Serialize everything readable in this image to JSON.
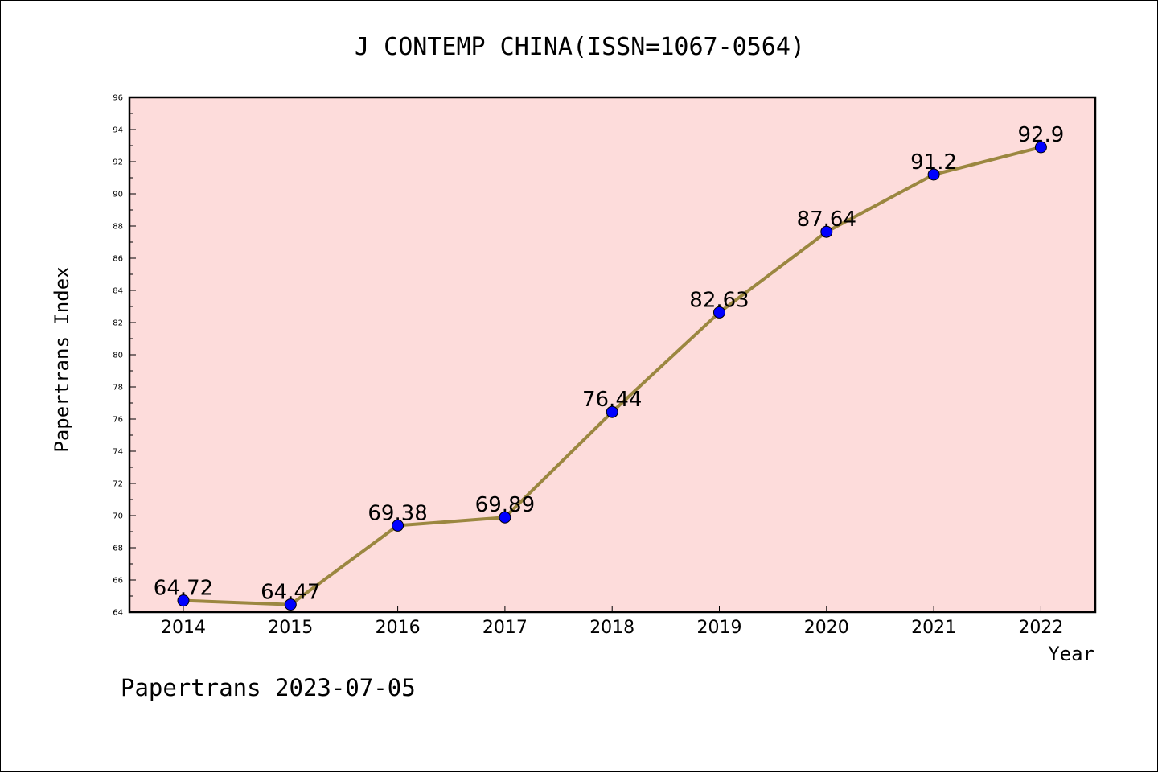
{
  "chart_data": {
    "type": "line",
    "title": "J CONTEMP CHINA(ISSN=1067-0564)",
    "xlabel": "Year",
    "ylabel": "Papertrans Index",
    "categories": [
      "2014",
      "2015",
      "2016",
      "2017",
      "2018",
      "2019",
      "2020",
      "2021",
      "2022"
    ],
    "series": [
      {
        "values": [
          64.72,
          64.47,
          69.38,
          69.89,
          76.44,
          82.63,
          87.64,
          91.2,
          92.9
        ],
        "data_labels": [
          "64.72",
          "64.47",
          "69.38",
          "69.89",
          "76.44",
          "82.63",
          "87.64",
          "91.2",
          "92.9"
        ]
      }
    ],
    "ylim": [
      64,
      96
    ],
    "yticks": [
      "64",
      "66",
      "68",
      "70",
      "72",
      "74",
      "76",
      "78",
      "80",
      "82",
      "84",
      "86",
      "88",
      "90",
      "92",
      "94",
      "96"
    ],
    "grid": false,
    "colors": {
      "plot_background": "#fddcdb",
      "line": "#9b8740",
      "marker": "#0000ff"
    }
  },
  "footer": "Papertrans 2023-07-05"
}
